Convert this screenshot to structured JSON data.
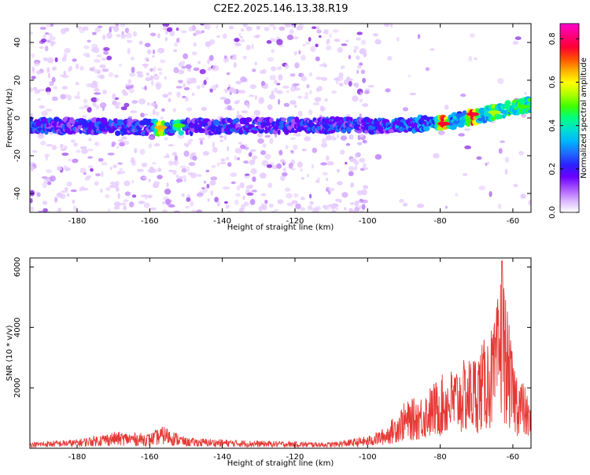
{
  "title": "C2E2.2025.146.13.38.R19",
  "colors": {
    "snr_line": "#e53935",
    "axes": "#000000",
    "colorbar": [
      "#ffffff",
      "#d9b3ff",
      "#a855ff",
      "#6a00ff",
      "#2b20ff",
      "#1e6bff",
      "#00b3ff",
      "#00e0d0",
      "#00ff80",
      "#40ff00",
      "#b0ff00",
      "#ffff00",
      "#ffb000",
      "#ff5000",
      "#ff0033",
      "#ff0080",
      "#ff00cc"
    ]
  },
  "chart_data": [
    {
      "type": "heatmap",
      "name": "spectrogram",
      "title": "C2E2.2025.146.13.38.R19",
      "xlabel": "Height of straight line (km)",
      "ylabel": "Frequency (Hz)",
      "xlim": [
        -193,
        -55
      ],
      "ylim": [
        -50,
        50
      ],
      "xticks": [
        -180,
        -160,
        -140,
        -120,
        -100,
        -80,
        -60
      ],
      "yticks": [
        -40,
        -20,
        0,
        20,
        40
      ],
      "colorbar": {
        "label": "Normalized spectral amplitude",
        "range": [
          0.0,
          0.87
        ],
        "ticks": [
          0.0,
          0.2,
          0.4,
          0.6,
          0.8
        ]
      },
      "ridge": {
        "description_points": [
          {
            "x": -193,
            "y": -4
          },
          {
            "x": -160,
            "y": -5
          },
          {
            "x": -120,
            "y": -4
          },
          {
            "x": -100,
            "y": -4
          },
          {
            "x": -80,
            "y": -3
          },
          {
            "x": -70,
            "y": 1
          },
          {
            "x": -60,
            "y": 5
          },
          {
            "x": -56,
            "y": 7
          }
        ],
        "peak_amplitudes": [
          {
            "x": -157,
            "y": -5,
            "a": 0.7
          },
          {
            "x": -152,
            "y": -4,
            "a": 0.5
          },
          {
            "x": -79,
            "y": -3,
            "a": 0.87
          },
          {
            "x": -71,
            "y": 2,
            "a": 0.87
          },
          {
            "x": -65,
            "y": 3,
            "a": 0.6
          },
          {
            "x": -57,
            "y": 6,
            "a": 0.5
          }
        ]
      }
    },
    {
      "type": "line",
      "name": "snr",
      "xlabel": "Height of straight line (km)",
      "ylabel": "SNR (10 * v/v)",
      "xlim": [
        -193,
        -55
      ],
      "ylim": [
        0,
        6300
      ],
      "xticks": [
        -180,
        -160,
        -140,
        -120,
        -100,
        -80,
        -60
      ],
      "yticks": [
        2000,
        4000,
        6000
      ],
      "envelope": [
        {
          "x": -193,
          "y": 200
        },
        {
          "x": -180,
          "y": 300
        },
        {
          "x": -170,
          "y": 550
        },
        {
          "x": -160,
          "y": 500
        },
        {
          "x": -156,
          "y": 750
        },
        {
          "x": -150,
          "y": 350
        },
        {
          "x": -130,
          "y": 250
        },
        {
          "x": -110,
          "y": 200
        },
        {
          "x": -100,
          "y": 400
        },
        {
          "x": -95,
          "y": 700
        },
        {
          "x": -90,
          "y": 1500
        },
        {
          "x": -85,
          "y": 1800
        },
        {
          "x": -80,
          "y": 2400
        },
        {
          "x": -75,
          "y": 2800
        },
        {
          "x": -70,
          "y": 3200
        },
        {
          "x": -67,
          "y": 3800
        },
        {
          "x": -65,
          "y": 4200
        },
        {
          "x": -63,
          "y": 6200
        },
        {
          "x": -60,
          "y": 3000
        },
        {
          "x": -57,
          "y": 2200
        },
        {
          "x": -55,
          "y": 1300
        }
      ]
    }
  ]
}
